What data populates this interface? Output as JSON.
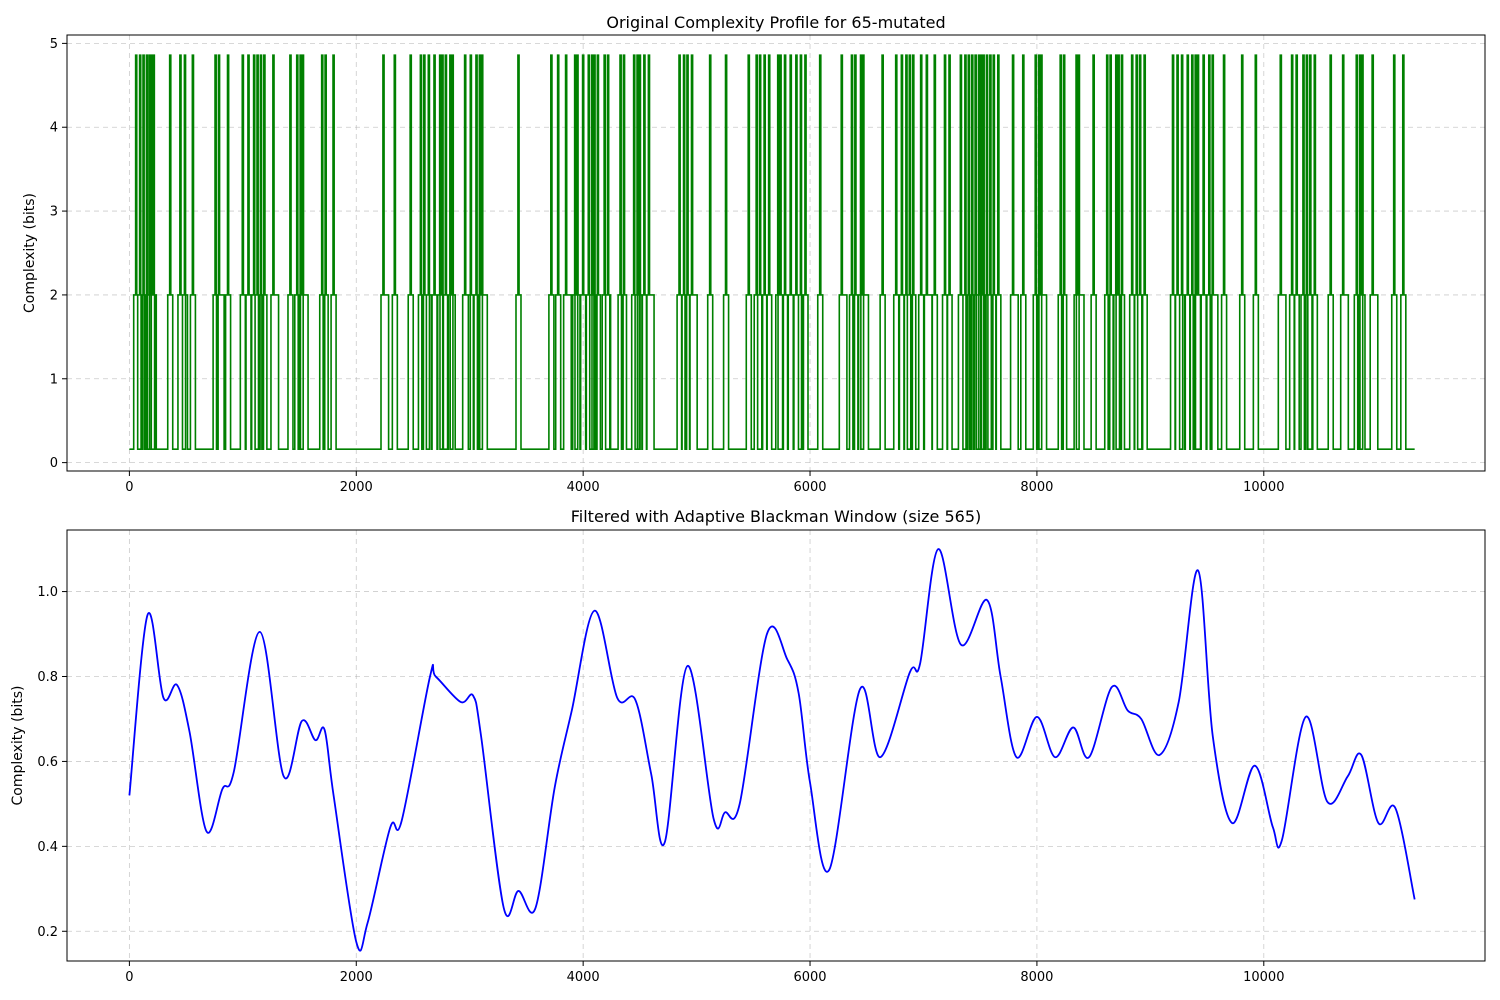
{
  "chart_data": [
    {
      "type": "line",
      "title": "Original Complexity Profile for 65-mutated",
      "xlabel": "",
      "ylabel": "Complexity (bits)",
      "xlim": [
        -550,
        11950
      ],
      "ylim": [
        -0.1,
        5.1
      ],
      "xticks": [
        0,
        2000,
        4000,
        6000,
        8000,
        10000
      ],
      "yticks": [
        0,
        1,
        2,
        3,
        4,
        5
      ],
      "grid": true,
      "color": "#008000",
      "step_levels": {
        "baseline": 0.16,
        "mid": 2.0,
        "high": 4.86
      },
      "x_range": [
        0,
        11330
      ],
      "high_spikes_x": [
        60,
        95,
        125,
        155,
        180,
        200,
        215,
        360,
        450,
        490,
        560,
        760,
        790,
        870,
        1000,
        1050,
        1100,
        1130,
        1160,
        1190,
        1270,
        1420,
        1480,
        1510,
        1530,
        1700,
        1730,
        1800,
        2240,
        2340,
        2480,
        2570,
        2600,
        2640,
        2690,
        2740,
        2760,
        2790,
        2830,
        2850,
        2960,
        3010,
        3060,
        3090,
        3110,
        3430,
        3720,
        3780,
        3850,
        3930,
        3950,
        4000,
        4050,
        4080,
        4100,
        4130,
        4190,
        4220,
        4330,
        4360,
        4450,
        4480,
        4500,
        4540,
        4580,
        4850,
        4890,
        4920,
        4960,
        5120,
        5260,
        5460,
        5530,
        5560,
        5600,
        5640,
        5720,
        5740,
        5780,
        5830,
        5880,
        5920,
        5960,
        6090,
        6280,
        6370,
        6400,
        6450,
        6470,
        6640,
        6760,
        6810,
        6850,
        6880,
        6910,
        6980,
        7030,
        7100,
        7190,
        7230,
        7330,
        7370,
        7400,
        7430,
        7460,
        7490,
        7510,
        7530,
        7560,
        7590,
        7620,
        7660,
        7790,
        7880,
        7990,
        8020,
        8040,
        8210,
        8240,
        8350,
        8370,
        8500,
        8620,
        8650,
        8700,
        8720,
        8750,
        8840,
        8880,
        8910,
        8950,
        9200,
        9240,
        9280,
        9330,
        9370,
        9400,
        9420,
        9470,
        9520,
        9550,
        9650,
        9810,
        9930,
        10150,
        10250,
        10290,
        10350,
        10380,
        10410,
        10450,
        10590,
        10700,
        10820,
        10850,
        10870,
        10960,
        11150,
        11230
      ]
    },
    {
      "type": "line",
      "title": "Filtered with Adaptive Blackman Window (size 565)",
      "xlabel": "",
      "ylabel": "Complexity (bits)",
      "xlim": [
        -550,
        11950
      ],
      "ylim": [
        0.13,
        1.145
      ],
      "xticks": [
        0,
        2000,
        4000,
        6000,
        8000,
        10000
      ],
      "yticks": [
        0.2,
        0.4,
        0.6,
        0.8,
        1.0
      ],
      "ytick_labels": [
        "0.2",
        "0.4",
        "0.6",
        "0.8",
        "1.0"
      ],
      "grid": true,
      "color": "#0000ff",
      "x": [
        0,
        160,
        300,
        420,
        530,
        680,
        820,
        920,
        1150,
        1360,
        1520,
        1640,
        1720,
        1800,
        2000,
        2100,
        2300,
        2400,
        2650,
        2700,
        2920,
        3030,
        3100,
        3300,
        3430,
        3580,
        3750,
        3900,
        4100,
        4300,
        4460,
        4600,
        4720,
        4920,
        5150,
        5250,
        5380,
        5620,
        5800,
        5900,
        6000,
        6170,
        6440,
        6620,
        6880,
        6970,
        7130,
        7330,
        7560,
        7680,
        7820,
        8000,
        8160,
        8320,
        8460,
        8660,
        8800,
        8920,
        9080,
        9250,
        9420,
        9550,
        9720,
        9920,
        10080,
        10160,
        10370,
        10560,
        10740,
        10860,
        11010,
        11160,
        11330
      ],
      "y": [
        0.52,
        0.945,
        0.75,
        0.78,
        0.67,
        0.435,
        0.535,
        0.575,
        0.905,
        0.565,
        0.695,
        0.65,
        0.675,
        0.52,
        0.175,
        0.22,
        0.445,
        0.46,
        0.8,
        0.8,
        0.74,
        0.755,
        0.66,
        0.255,
        0.295,
        0.255,
        0.54,
        0.72,
        0.955,
        0.75,
        0.745,
        0.57,
        0.41,
        0.825,
        0.465,
        0.48,
        0.5,
        0.9,
        0.84,
        0.76,
        0.55,
        0.345,
        0.77,
        0.61,
        0.81,
        0.83,
        1.1,
        0.875,
        0.98,
        0.8,
        0.61,
        0.705,
        0.61,
        0.68,
        0.61,
        0.775,
        0.72,
        0.7,
        0.615,
        0.74,
        1.05,
        0.66,
        0.455,
        0.59,
        0.445,
        0.415,
        0.705,
        0.505,
        0.565,
        0.615,
        0.455,
        0.49,
        0.275
      ]
    }
  ]
}
